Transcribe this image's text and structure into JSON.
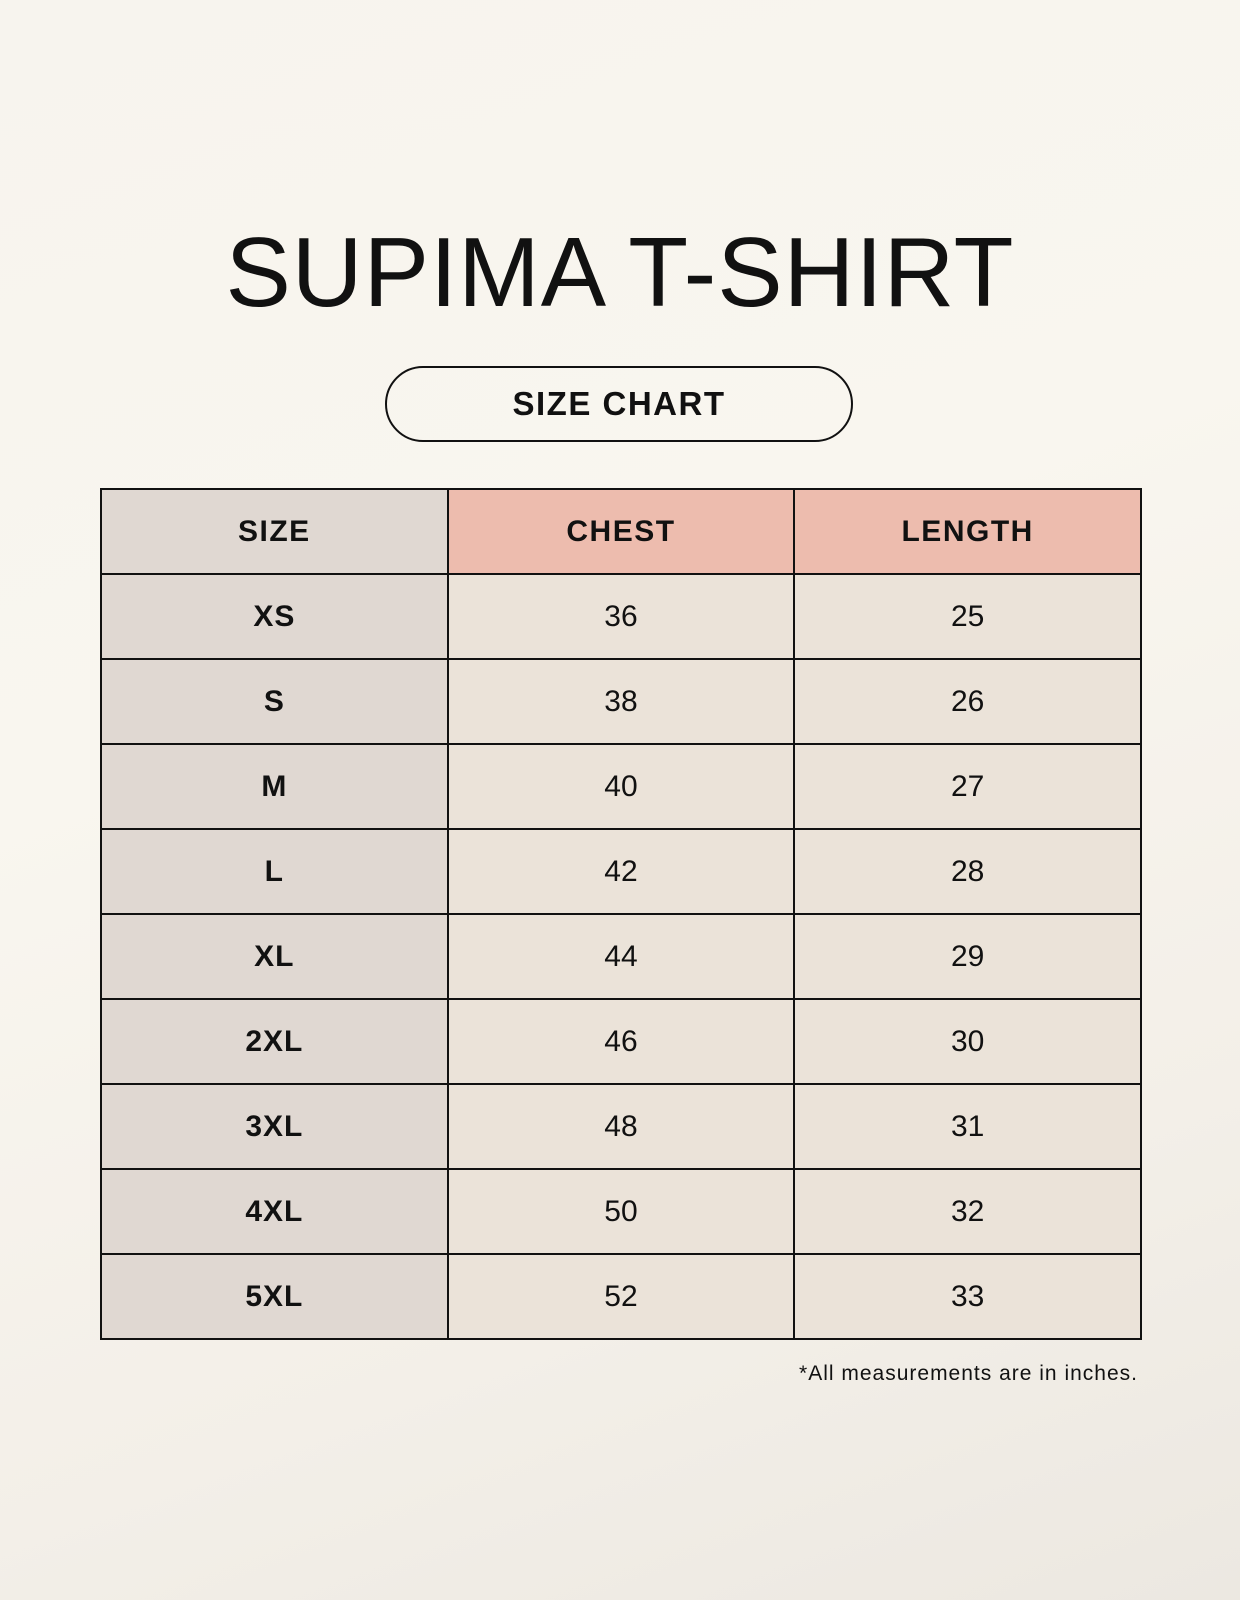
{
  "title": "SUPIMA T-SHIRT",
  "subtitle": "SIZE CHART",
  "colors": {
    "size_column": "#e0d8d2",
    "header_highlight": "#edbcae",
    "cell": "#ebe3d9"
  },
  "table": {
    "headers": [
      "SIZE",
      "CHEST",
      "LENGTH"
    ],
    "rows": [
      [
        "XS",
        "36",
        "25"
      ],
      [
        "S",
        "38",
        "26"
      ],
      [
        "M",
        "40",
        "27"
      ],
      [
        "L",
        "42",
        "28"
      ],
      [
        "XL",
        "44",
        "29"
      ],
      [
        "2XL",
        "46",
        "30"
      ],
      [
        "3XL",
        "48",
        "31"
      ],
      [
        "4XL",
        "50",
        "32"
      ],
      [
        "5XL",
        "52",
        "33"
      ]
    ]
  },
  "footnote": "*All measurements are in inches."
}
